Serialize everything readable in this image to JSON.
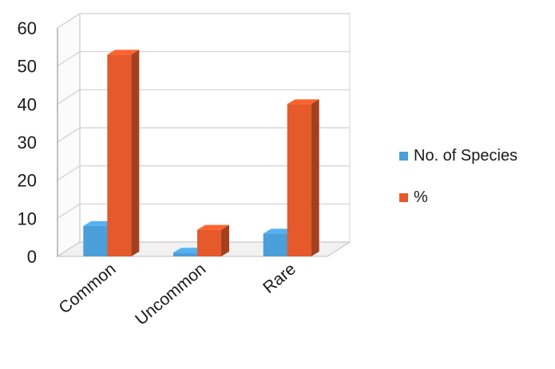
{
  "chart_data": {
    "type": "bar",
    "style": "3d-clustered-column",
    "categories": [
      "Common",
      "Uncommon",
      "Rare"
    ],
    "series": [
      {
        "name": "No. of Species",
        "values": [
          8,
          1,
          6
        ],
        "color": "#4a9fd9"
      },
      {
        "name": "%",
        "values": [
          53,
          7,
          40
        ],
        "color": "#e5592a"
      }
    ],
    "yticks": [
      "0",
      "10",
      "20",
      "30",
      "40",
      "50",
      "60"
    ],
    "ylim": [
      0,
      60
    ],
    "grid": true,
    "legend_position": "right"
  }
}
